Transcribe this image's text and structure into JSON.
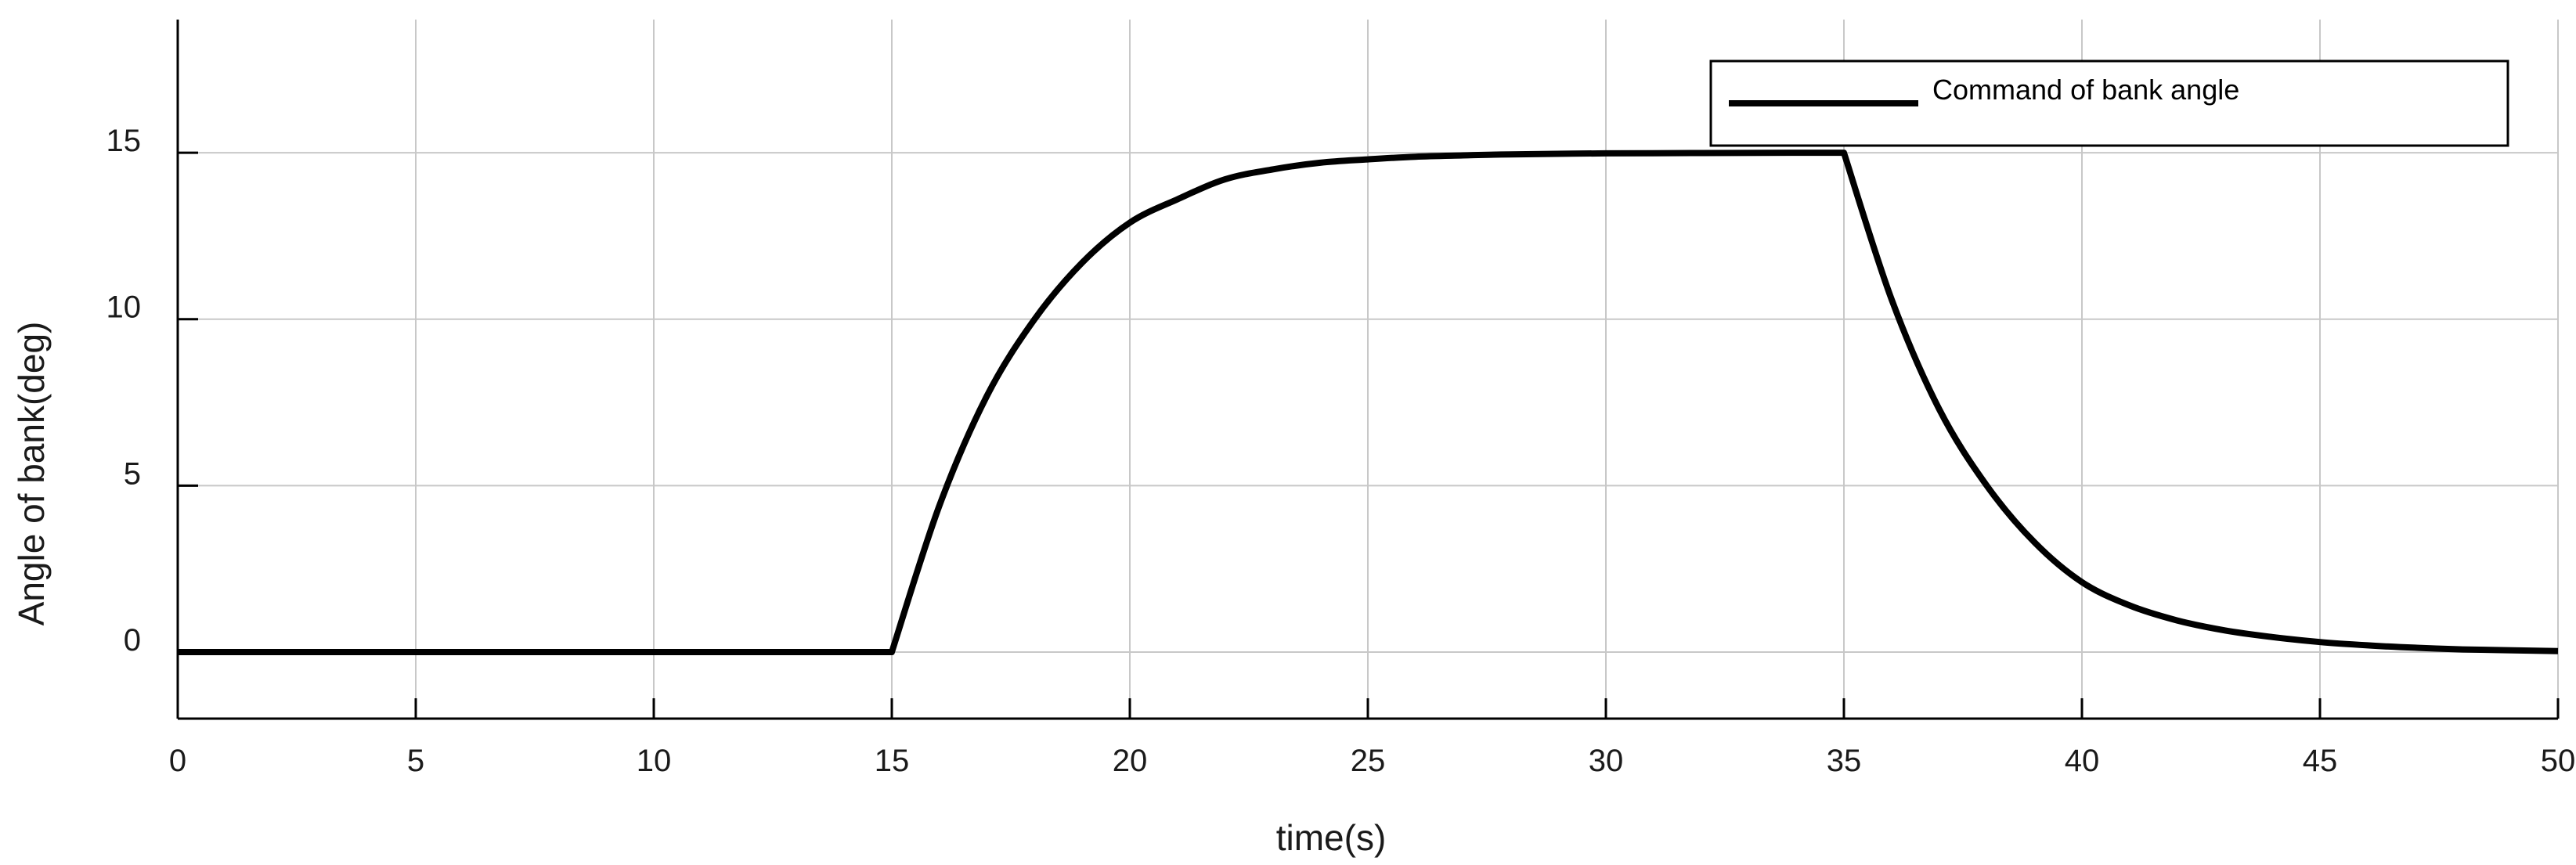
{
  "chart_data": {
    "type": "line",
    "title": "",
    "xlabel": "time(s)",
    "ylabel": "Angle of bank(deg)",
    "xlim": [
      0,
      50
    ],
    "ylim": [
      -2,
      19
    ],
    "xticks": [
      0,
      5,
      10,
      15,
      20,
      25,
      30,
      35,
      40,
      45,
      50
    ],
    "yticks": [
      0,
      5,
      10,
      15
    ],
    "grid": true,
    "legend": "top-right",
    "series": [
      {
        "name": "Command of bank angle",
        "color": "#000000",
        "x": [
          0,
          5,
          10,
          15,
          16,
          17,
          18,
          19,
          20,
          21,
          22,
          23,
          24,
          25,
          26,
          27,
          28,
          30,
          32,
          34,
          35,
          36,
          37,
          38,
          39,
          40,
          41,
          42,
          43,
          44,
          45,
          46,
          47,
          48,
          50
        ],
        "y": [
          0,
          0,
          0,
          0,
          4.4,
          7.7,
          10.0,
          11.7,
          12.9,
          13.6,
          14.2,
          14.5,
          14.7,
          14.8,
          14.88,
          14.92,
          14.95,
          14.98,
          14.99,
          15.0,
          15.0,
          10.6,
          7.3,
          5.0,
          3.3,
          2.1,
          1.4,
          0.95,
          0.65,
          0.45,
          0.3,
          0.2,
          0.13,
          0.08,
          0.03
        ]
      }
    ]
  }
}
